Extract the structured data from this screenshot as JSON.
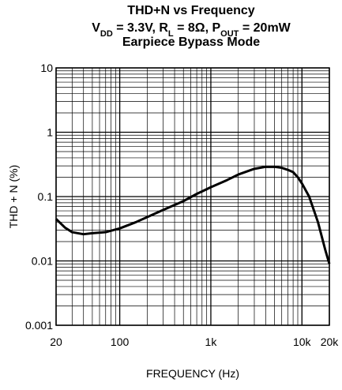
{
  "chart_data": {
    "type": "line",
    "title": "THD+N vs Frequency",
    "subtitle": [
      "V",
      "DD",
      " = 3.3V, R",
      "L",
      " = 8Ω, P",
      "OUT",
      " = 20mW"
    ],
    "subtitle2": "Earpiece Bypass Mode",
    "x_label": "FREQUENCY (Hz)",
    "y_label": "THD + N (%)",
    "x_log": true,
    "y_log": true,
    "grid": true,
    "xlim": [
      20,
      20000
    ],
    "ylim": [
      0.001,
      10
    ],
    "xticks": [
      20,
      100,
      {
        "value": 1000,
        "label": "1k"
      },
      {
        "value": 10000,
        "label": "10k"
      },
      {
        "value": 20000,
        "label": "20k"
      }
    ],
    "yticks": [
      0.001,
      0.01,
      0.1,
      1,
      10
    ],
    "x": [
      20,
      25,
      30,
      40,
      50,
      70,
      100,
      150,
      200,
      300,
      500,
      700,
      1000,
      1500,
      2000,
      3000,
      4000,
      5000,
      6000,
      7000,
      8000,
      9000,
      10000,
      12000,
      15000,
      18000,
      20000
    ],
    "series": [
      {
        "color": "#000000",
        "values": [
          0.045,
          0.033,
          0.028,
          0.026,
          0.027,
          0.028,
          0.032,
          0.04,
          0.048,
          0.062,
          0.085,
          0.11,
          0.14,
          0.18,
          0.22,
          0.27,
          0.29,
          0.29,
          0.28,
          0.26,
          0.24,
          0.2,
          0.16,
          0.1,
          0.04,
          0.015,
          0.009
        ]
      }
    ]
  }
}
